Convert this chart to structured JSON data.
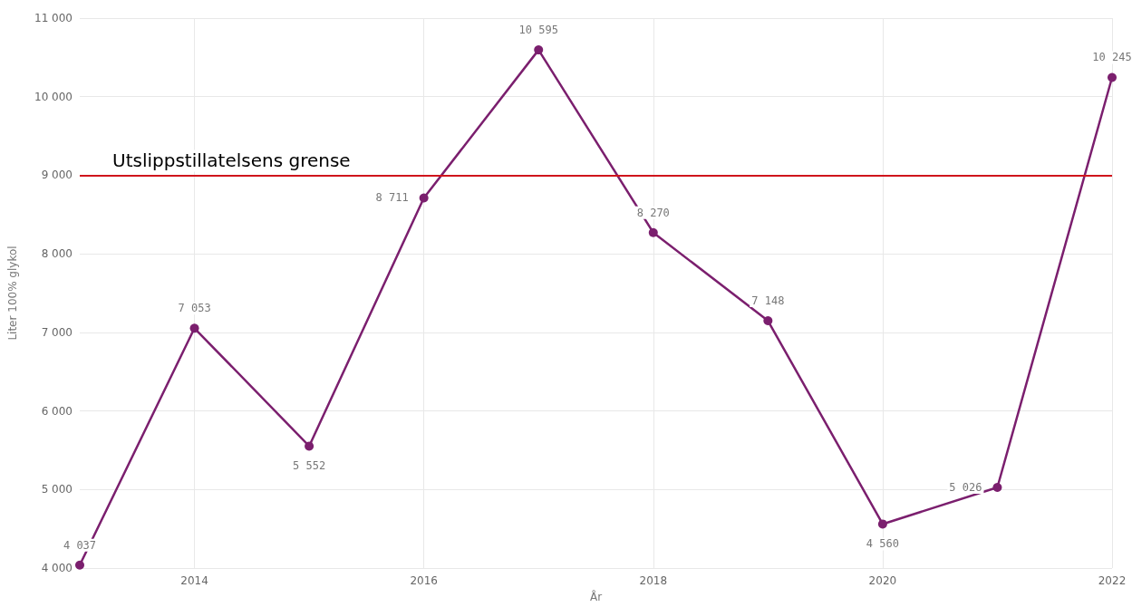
{
  "chart_data": {
    "type": "line",
    "xlabel": "År",
    "ylabel": "Liter 100% glykol",
    "x": [
      2013,
      2014,
      2015,
      2016,
      2017,
      2018,
      2019,
      2020,
      2021,
      2022
    ],
    "series": [
      {
        "color": "#7b1f6e",
        "values": [
          4037,
          7053,
          5552,
          8711,
          10595,
          8270,
          7148,
          4560,
          5026,
          10245
        ],
        "value_labels": [
          "4 037",
          "7 053",
          "5 552",
          "8 711",
          "10 595",
          "8 270",
          "7 148",
          "4 560",
          "5 026",
          "10 245"
        ]
      }
    ],
    "xlim": [
      2013,
      2022
    ],
    "xticks": [
      2014,
      2016,
      2018,
      2020,
      2022
    ],
    "ylim": [
      4000,
      11000
    ],
    "yticks": [
      {
        "value": 4000,
        "label": "4 000"
      },
      {
        "value": 5000,
        "label": "5 000"
      },
      {
        "value": 6000,
        "label": "6 000"
      },
      {
        "value": 7000,
        "label": "7 000"
      },
      {
        "value": 8000,
        "label": "8 000"
      },
      {
        "value": 9000,
        "label": "9 000"
      },
      {
        "value": 10000,
        "label": "10 000"
      },
      {
        "value": 11000,
        "label": "11 000"
      }
    ],
    "ref_lines": [
      {
        "axis": "y",
        "value": 9000,
        "label": "Utslippstillatelsens grense",
        "color": "#d0141c"
      }
    ],
    "grid": true,
    "marker": "circle",
    "line_style": "solid"
  }
}
